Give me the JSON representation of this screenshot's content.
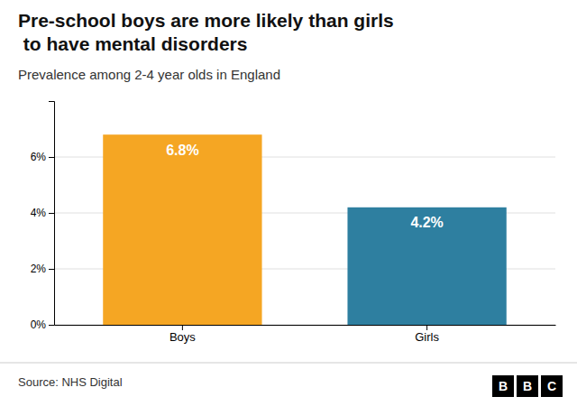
{
  "chart_data": {
    "type": "bar",
    "title": "Pre-school boys are more likely than girls\nto have mental disorders",
    "subtitle": "Prevalence among 2-4 year olds in England",
    "source": "Source: NHS Digital",
    "logo": "BBC",
    "categories": [
      "Boys",
      "Girls"
    ],
    "values": [
      6.8,
      4.2
    ],
    "value_labels": [
      "6.8%",
      "4.2%"
    ],
    "data_labels": true,
    "colors": [
      "#F5A623",
      "#2E7FA0"
    ],
    "ylim": [
      0,
      8
    ],
    "yticks": [
      {
        "value": 0,
        "label": "0%"
      },
      {
        "value": 2,
        "label": "2%"
      },
      {
        "value": 4,
        "label": "4%"
      },
      {
        "value": 6,
        "label": "6%"
      }
    ],
    "grid": true
  }
}
